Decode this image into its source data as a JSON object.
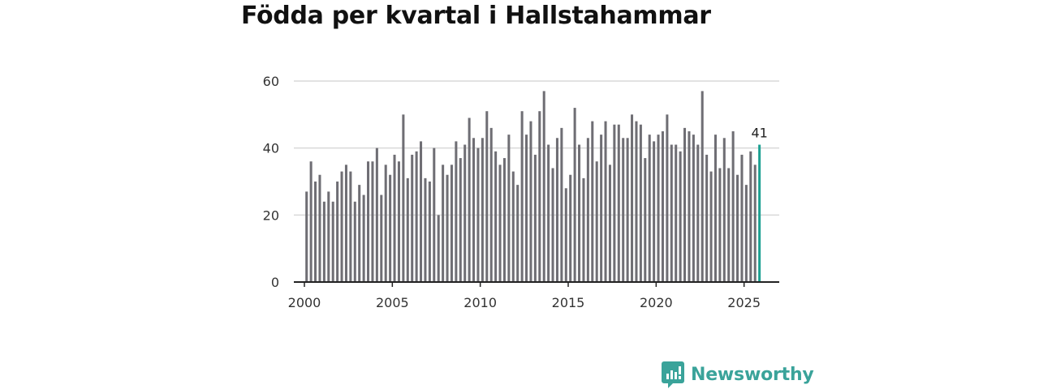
{
  "title": "Födda per kvartal i Hallstahammar",
  "brand": {
    "name": "Newsworthy",
    "color": "#3aa39a"
  },
  "colors": {
    "bar": "#6f6e74",
    "highlight": "#1ea193",
    "grid": "#d9d9d9",
    "axis": "#222222"
  },
  "chart_data": {
    "type": "bar",
    "title": "Födda per kvartal i Hallstahammar",
    "xlabel": "",
    "ylabel": "",
    "ylim": [
      0,
      60
    ],
    "yticks": [
      0,
      20,
      40,
      60
    ],
    "xticks": [
      2000,
      2005,
      2010,
      2015,
      2020,
      2025
    ],
    "xlim": [
      1999.4,
      2027.0
    ],
    "x_start": 2000.125,
    "step": 0.25,
    "highlight_index": 103,
    "highlight_label": "41",
    "values": [
      27,
      36,
      30,
      32,
      24,
      27,
      24,
      30,
      33,
      35,
      33,
      24,
      29,
      26,
      36,
      36,
      40,
      26,
      35,
      32,
      38,
      36,
      50,
      31,
      38,
      39,
      42,
      31,
      30,
      40,
      20,
      35,
      32,
      35,
      42,
      37,
      41,
      49,
      43,
      40,
      43,
      51,
      46,
      39,
      35,
      37,
      44,
      33,
      29,
      51,
      44,
      48,
      38,
      51,
      57,
      41,
      34,
      43,
      46,
      28,
      32,
      52,
      41,
      31,
      43,
      48,
      36,
      44,
      48,
      35,
      47,
      47,
      43,
      43,
      50,
      48,
      47,
      37,
      44,
      42,
      44,
      45,
      50,
      41,
      41,
      39,
      46,
      45,
      44,
      41,
      57,
      38,
      33,
      44,
      34,
      43,
      34,
      45,
      32,
      38,
      29,
      39,
      35,
      41
    ]
  }
}
